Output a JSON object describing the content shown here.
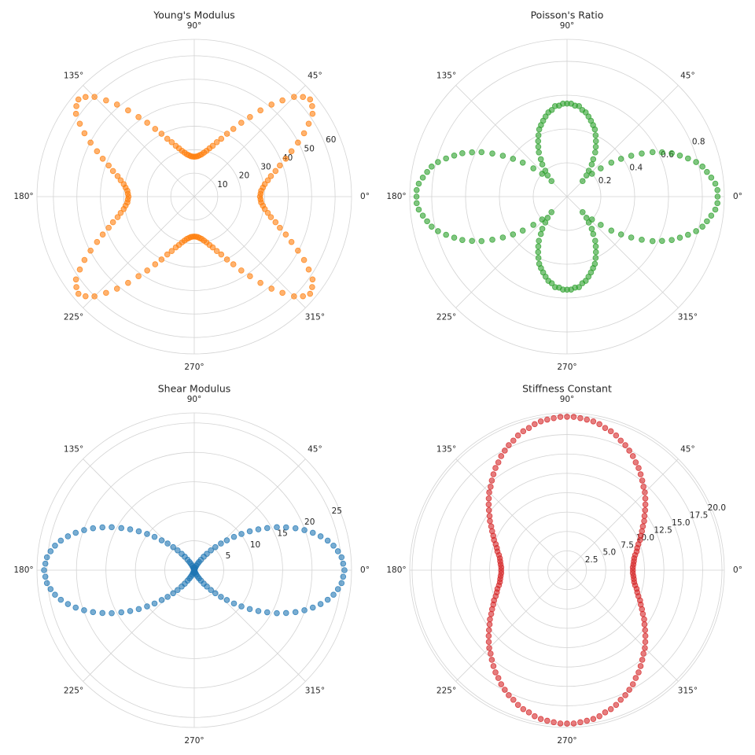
{
  "chart_data": [
    {
      "type": "polar_scatter",
      "title": "Young's Modulus",
      "color": "#ff7f0e",
      "grid": true,
      "ylim": [
        0,
        67
      ],
      "yticks": [
        10,
        20,
        30,
        40,
        50,
        60
      ],
      "xticks": [
        {
          "value": 0,
          "label": "0°"
        },
        {
          "value": 45,
          "label": "45°"
        },
        {
          "value": 90,
          "label": "90°"
        },
        {
          "value": 135,
          "label": "135°"
        },
        {
          "value": 180,
          "label": "180°"
        },
        {
          "value": 225,
          "label": "225°"
        },
        {
          "value": 270,
          "label": "270°"
        },
        {
          "value": 315,
          "label": "315°"
        }
      ],
      "theta": [
        0,
        2.5,
        5,
        7.5,
        10,
        12.5,
        15,
        17.5,
        20,
        22.5,
        25,
        27.5,
        30,
        32.5,
        35,
        37.5,
        40,
        42.5,
        45,
        47.5,
        50,
        52.5,
        55,
        57.5,
        60,
        62.5,
        65,
        67.5,
        70,
        72.5,
        75,
        77.5,
        80,
        82.5,
        85,
        87.5,
        90,
        92.5,
        95,
        97.5,
        100,
        102.5,
        105,
        107.5,
        110,
        112.5,
        115,
        117.5,
        120,
        122.5,
        125,
        127.5,
        130,
        132.5,
        135,
        137.5,
        140,
        142.5,
        145,
        147.5,
        150,
        152.5,
        155,
        157.5,
        160,
        162.5,
        165,
        167.5,
        170,
        172.5,
        175,
        177.5,
        180,
        182.5,
        185,
        187.5,
        190,
        192.5,
        195,
        197.5,
        200,
        202.5,
        205,
        207.5,
        210,
        212.5,
        215,
        217.5,
        220,
        222.5,
        225,
        227.5,
        230,
        232.5,
        235,
        237.5,
        240,
        242.5,
        245,
        247.5,
        250,
        252.5,
        255,
        257.5,
        260,
        262.5,
        265,
        267.5,
        270,
        272.5,
        275,
        277.5,
        280,
        282.5,
        285,
        287.5,
        290,
        292.5,
        295,
        297.5,
        300,
        302.5,
        305,
        307.5,
        310,
        312.5,
        315,
        317.5,
        320,
        322.5,
        325,
        327.5,
        330,
        332.5,
        335,
        337.5,
        340,
        342.5,
        345,
        347.5,
        350,
        352.5,
        355,
        357.5
      ],
      "values": [
        28.0,
        28.3,
        28.6,
        29.5,
        30.5,
        32.1,
        33.8,
        36.3,
        38.8,
        42.2,
        45.7,
        49.8,
        54.0,
        57.8,
        61.5,
        63.3,
        64.4,
        62.8,
        60.1,
        55.6,
        51.2,
        46.3,
        41.4,
        37.3,
        33.3,
        30.2,
        27.2,
        25.1,
        23.0,
        21.6,
        20.2,
        19.2,
        18.3,
        17.8,
        17.3,
        17.1,
        17.0,
        17.1,
        17.3,
        17.8,
        18.3,
        19.2,
        20.2,
        21.6,
        23.0,
        25.1,
        27.2,
        30.2,
        33.3,
        37.3,
        41.4,
        46.3,
        51.2,
        55.6,
        60.1,
        62.8,
        64.4,
        63.3,
        61.5,
        57.8,
        54.0,
        49.8,
        45.7,
        42.2,
        38.8,
        36.3,
        33.8,
        32.1,
        30.5,
        29.5,
        28.6,
        28.3,
        28.0,
        28.3,
        28.6,
        29.5,
        30.5,
        32.1,
        33.8,
        36.3,
        38.8,
        42.2,
        45.7,
        49.8,
        54.0,
        57.8,
        61.5,
        63.3,
        64.4,
        62.8,
        60.1,
        55.6,
        51.2,
        46.3,
        41.4,
        37.3,
        33.3,
        30.2,
        27.2,
        25.1,
        23.0,
        21.6,
        20.2,
        19.2,
        18.3,
        17.8,
        17.3,
        17.1,
        17.0,
        17.1,
        17.3,
        17.8,
        18.3,
        19.2,
        20.2,
        21.6,
        23.0,
        25.1,
        27.2,
        30.2,
        33.3,
        37.3,
        41.4,
        46.3,
        51.2,
        55.6,
        60.1,
        62.8,
        64.4,
        63.3,
        61.5,
        57.8,
        54.0,
        49.8,
        45.7,
        42.2,
        38.8,
        36.3,
        33.8,
        32.1,
        30.5,
        29.5,
        28.6,
        28.3
      ]
    },
    {
      "type": "polar_scatter",
      "title": "Poisson's Ratio",
      "color": "#2ca02c",
      "grid": true,
      "ylim": [
        0,
        0.93
      ],
      "yticks": [
        0.2,
        0.4,
        0.6,
        0.8
      ],
      "xticks": [
        {
          "value": 0,
          "label": "0°"
        },
        {
          "value": 45,
          "label": "45°"
        },
        {
          "value": 90,
          "label": "90°"
        },
        {
          "value": 135,
          "label": "135°"
        },
        {
          "value": 180,
          "label": "180°"
        },
        {
          "value": 225,
          "label": "225°"
        },
        {
          "value": 270,
          "label": "270°"
        },
        {
          "value": 315,
          "label": "315°"
        }
      ],
      "theta": [
        0,
        2.5,
        5,
        7.5,
        10,
        12.5,
        15,
        17.5,
        20,
        22.5,
        25,
        27.5,
        30,
        32.5,
        35,
        37.5,
        40,
        42.5,
        45,
        47.5,
        50,
        52.5,
        55,
        57.5,
        60,
        62.5,
        65,
        67.5,
        70,
        72.5,
        75,
        77.5,
        80,
        82.5,
        85,
        87.5,
        90,
        92.5,
        95,
        97.5,
        100,
        102.5,
        105,
        107.5,
        110,
        112.5,
        115,
        117.5,
        120,
        122.5,
        125,
        127.5,
        130,
        132.5,
        135,
        137.5,
        140,
        142.5,
        145,
        147.5,
        150,
        152.5,
        155,
        157.5,
        160,
        162.5,
        165,
        167.5,
        170,
        172.5,
        175,
        177.5,
        180,
        182.5,
        185,
        187.5,
        190,
        192.5,
        195,
        197.5,
        200,
        202.5,
        205,
        207.5,
        210,
        212.5,
        215,
        217.5,
        220,
        222.5,
        225,
        227.5,
        230,
        232.5,
        235,
        237.5,
        240,
        242.5,
        245,
        247.5,
        250,
        252.5,
        255,
        257.5,
        260,
        262.5,
        265,
        267.5,
        270,
        272.5,
        275,
        277.5,
        280,
        282.5,
        285,
        287.5,
        290,
        292.5,
        295,
        297.5,
        300,
        302.5,
        305,
        307.5,
        310,
        312.5,
        315,
        317.5,
        320,
        322.5,
        325,
        327.5,
        330,
        332.5,
        335,
        337.5,
        340,
        342.5,
        345,
        347.5,
        350,
        352.5,
        355,
        357.5
      ],
      "values": [
        0.89,
        0.89,
        0.88,
        0.86,
        0.84,
        0.82,
        0.79,
        0.75,
        0.71,
        0.67,
        0.62,
        0.57,
        0.51,
        0.45,
        0.39,
        0.33,
        0.26,
        0.2,
        0.13,
        0.17,
        0.2,
        0.24,
        0.27,
        0.31,
        0.34,
        0.37,
        0.4,
        0.43,
        0.45,
        0.47,
        0.49,
        0.51,
        0.52,
        0.54,
        0.54,
        0.55,
        0.55,
        0.55,
        0.54,
        0.54,
        0.52,
        0.51,
        0.49,
        0.47,
        0.45,
        0.43,
        0.4,
        0.37,
        0.34,
        0.31,
        0.27,
        0.24,
        0.2,
        0.17,
        0.13,
        0.2,
        0.26,
        0.33,
        0.39,
        0.45,
        0.51,
        0.57,
        0.62,
        0.67,
        0.71,
        0.75,
        0.79,
        0.82,
        0.84,
        0.86,
        0.88,
        0.89,
        0.89,
        0.89,
        0.88,
        0.86,
        0.84,
        0.82,
        0.79,
        0.75,
        0.71,
        0.67,
        0.62,
        0.57,
        0.51,
        0.45,
        0.39,
        0.33,
        0.26,
        0.2,
        0.13,
        0.17,
        0.2,
        0.24,
        0.27,
        0.31,
        0.34,
        0.37,
        0.4,
        0.43,
        0.45,
        0.47,
        0.49,
        0.51,
        0.52,
        0.54,
        0.54,
        0.55,
        0.55,
        0.55,
        0.54,
        0.54,
        0.52,
        0.51,
        0.49,
        0.47,
        0.45,
        0.43,
        0.4,
        0.37,
        0.34,
        0.31,
        0.27,
        0.24,
        0.2,
        0.17,
        0.13,
        0.2,
        0.26,
        0.33,
        0.39,
        0.45,
        0.51,
        0.57,
        0.62,
        0.67,
        0.71,
        0.75,
        0.79,
        0.82,
        0.84,
        0.86,
        0.88,
        0.89
      ]
    },
    {
      "type": "polar_scatter",
      "title": "Shear Modulus",
      "color": "#1f77b4",
      "grid": true,
      "ylim": [
        0,
        26.7
      ],
      "yticks": [
        5,
        10,
        15,
        20,
        25
      ],
      "xticks": [
        {
          "value": 0,
          "label": "0°"
        },
        {
          "value": 45,
          "label": "45°"
        },
        {
          "value": 90,
          "label": "90°"
        },
        {
          "value": 135,
          "label": "135°"
        },
        {
          "value": 180,
          "label": "180°"
        },
        {
          "value": 225,
          "label": "225°"
        },
        {
          "value": 270,
          "label": "270°"
        },
        {
          "value": 315,
          "label": "315°"
        }
      ],
      "theta": [
        0,
        2.5,
        5,
        7.5,
        10,
        12.5,
        15,
        17.5,
        20,
        22.5,
        25,
        27.5,
        30,
        32.5,
        35,
        37.5,
        40,
        42.5,
        45,
        47.5,
        50,
        52.5,
        55,
        57.5,
        60,
        62.5,
        65,
        67.5,
        70,
        72.5,
        75,
        77.5,
        80,
        82.5,
        85,
        87.5,
        90,
        92.5,
        95,
        97.5,
        100,
        102.5,
        105,
        107.5,
        110,
        112.5,
        115,
        117.5,
        120,
        122.5,
        125,
        127.5,
        130,
        132.5,
        135,
        137.5,
        140,
        142.5,
        145,
        147.5,
        150,
        152.5,
        155,
        157.5,
        160,
        162.5,
        165,
        167.5,
        170,
        172.5,
        175,
        177.5,
        180,
        182.5,
        185,
        187.5,
        190,
        192.5,
        195,
        197.5,
        200,
        202.5,
        205,
        207.5,
        210,
        212.5,
        215,
        217.5,
        220,
        222.5,
        225,
        227.5,
        230,
        232.5,
        235,
        237.5,
        240,
        242.5,
        245,
        247.5,
        250,
        252.5,
        255,
        257.5,
        260,
        262.5,
        265,
        267.5,
        270,
        272.5,
        275,
        277.5,
        280,
        282.5,
        285,
        287.5,
        290,
        292.5,
        295,
        297.5,
        300,
        302.5,
        305,
        307.5,
        310,
        312.5,
        315,
        317.5,
        320,
        322.5,
        325,
        327.5,
        330,
        332.5,
        335,
        337.5,
        340,
        342.5,
        345,
        347.5,
        350,
        352.5,
        355,
        357.5
      ],
      "values": [
        25.5,
        25.3,
        25.1,
        24.6,
        24.0,
        23.2,
        22.2,
        21.1,
        19.9,
        18.6,
        17.2,
        15.8,
        14.3,
        12.9,
        11.5,
        10.1,
        8.8,
        7.5,
        6.4,
        5.3,
        4.4,
        3.5,
        2.8,
        2.1,
        1.6,
        1.2,
        0.8,
        0.5,
        0.3,
        0.2,
        0.1,
        0.1,
        0,
        0,
        0,
        0,
        0,
        0,
        0,
        0,
        0,
        0.1,
        0.1,
        0.2,
        0.3,
        0.5,
        0.8,
        1.2,
        1.6,
        2.1,
        2.8,
        3.5,
        4.4,
        5.3,
        6.4,
        7.5,
        8.8,
        10.1,
        11.5,
        12.9,
        14.3,
        15.8,
        17.2,
        18.6,
        19.9,
        21.1,
        22.2,
        23.2,
        24.0,
        24.6,
        25.1,
        25.3,
        25.5,
        25.3,
        25.1,
        24.6,
        24.0,
        23.2,
        22.2,
        21.1,
        19.9,
        18.6,
        17.2,
        15.8,
        14.3,
        12.9,
        11.5,
        10.1,
        8.8,
        7.5,
        6.4,
        5.3,
        4.4,
        3.5,
        2.8,
        2.1,
        1.6,
        1.2,
        0.8,
        0.5,
        0.3,
        0.2,
        0.1,
        0.1,
        0,
        0,
        0,
        0,
        0,
        0,
        0,
        0,
        0,
        0.1,
        0.1,
        0.2,
        0.3,
        0.5,
        0.8,
        1.2,
        1.6,
        2.1,
        2.8,
        3.5,
        4.4,
        5.3,
        6.4,
        7.5,
        8.8,
        10.1,
        11.5,
        12.9,
        14.3,
        15.8,
        17.2,
        18.6,
        19.9,
        21.1,
        22.2,
        23.2,
        24.0,
        24.6,
        25.1,
        25.3
      ]
    },
    {
      "type": "polar_scatter",
      "title": "Stiffness Constant",
      "color": "#d62728",
      "grid": true,
      "ylim": [
        0,
        20.3
      ],
      "yticks": [
        2.5,
        {
          "value": 5,
          "label": "5.0"
        },
        7.5,
        {
          "value": 10,
          "label": "10.0"
        },
        12.5,
        {
          "value": 15,
          "label": "15.0"
        },
        17.5,
        {
          "value": 20,
          "label": "20.0"
        }
      ],
      "xticks": [
        {
          "value": 0,
          "label": "0°"
        },
        {
          "value": 45,
          "label": "45°"
        },
        {
          "value": 90,
          "label": "90°"
        },
        {
          "value": 135,
          "label": "135°"
        },
        {
          "value": 180,
          "label": "180°"
        },
        {
          "value": 225,
          "label": "225°"
        },
        {
          "value": 270,
          "label": "270°"
        },
        {
          "value": 315,
          "label": "315°"
        }
      ],
      "theta": [
        0,
        2.5,
        5,
        7.5,
        10,
        12.5,
        15,
        17.5,
        20,
        22.5,
        25,
        27.5,
        30,
        32.5,
        35,
        37.5,
        40,
        42.5,
        45,
        47.5,
        50,
        52.5,
        55,
        57.5,
        60,
        62.5,
        65,
        67.5,
        70,
        72.5,
        75,
        77.5,
        80,
        82.5,
        85,
        87.5,
        90,
        92.5,
        95,
        97.5,
        100,
        102.5,
        105,
        107.5,
        110,
        112.5,
        115,
        117.5,
        120,
        122.5,
        125,
        127.5,
        130,
        132.5,
        135,
        137.5,
        140,
        142.5,
        145,
        147.5,
        150,
        152.5,
        155,
        157.5,
        160,
        162.5,
        165,
        167.5,
        170,
        172.5,
        175,
        177.5,
        180,
        182.5,
        185,
        187.5,
        190,
        192.5,
        195,
        197.5,
        200,
        202.5,
        205,
        207.5,
        210,
        212.5,
        215,
        217.5,
        220,
        222.5,
        225,
        227.5,
        230,
        232.5,
        235,
        237.5,
        240,
        242.5,
        245,
        247.5,
        250,
        252.5,
        255,
        257.5,
        260,
        262.5,
        265,
        267.5,
        270,
        272.5,
        275,
        277.5,
        280,
        282.5,
        285,
        287.5,
        290,
        292.5,
        295,
        297.5,
        300,
        302.5,
        305,
        307.5,
        310,
        312.5,
        315,
        317.5,
        320,
        322.5,
        325,
        327.5,
        330,
        332.5,
        335,
        337.5,
        340,
        342.5,
        345,
        347.5,
        350,
        352.5,
        355,
        357.5
      ],
      "values": [
        8.5,
        8.5,
        8.6,
        8.7,
        8.8,
        9.0,
        9.3,
        9.5,
        9.8,
        10.2,
        10.5,
        10.9,
        11.3,
        11.8,
        12.2,
        12.7,
        13.2,
        13.7,
        14.2,
        14.6,
        15.1,
        15.6,
        16.1,
        16.5,
        17.0,
        17.4,
        17.8,
        18.1,
        18.5,
        18.8,
        19.0,
        19.3,
        19.5,
        19.6,
        19.7,
        19.8,
        19.8,
        19.8,
        19.7,
        19.6,
        19.5,
        19.3,
        19.0,
        18.8,
        18.5,
        18.1,
        17.8,
        17.4,
        17.0,
        16.5,
        16.1,
        15.6,
        15.1,
        14.6,
        14.2,
        13.7,
        13.2,
        12.7,
        12.2,
        11.8,
        11.3,
        10.9,
        10.5,
        10.2,
        9.8,
        9.5,
        9.3,
        9.0,
        8.8,
        8.7,
        8.6,
        8.5,
        8.5,
        8.5,
        8.6,
        8.7,
        8.8,
        9.0,
        9.3,
        9.5,
        9.8,
        10.2,
        10.5,
        10.9,
        11.3,
        11.8,
        12.2,
        12.7,
        13.2,
        13.7,
        14.2,
        14.6,
        15.1,
        15.6,
        16.1,
        16.5,
        17.0,
        17.4,
        17.8,
        18.1,
        18.5,
        18.8,
        19.0,
        19.3,
        19.5,
        19.6,
        19.7,
        19.8,
        19.8,
        19.8,
        19.7,
        19.6,
        19.5,
        19.3,
        19.0,
        18.8,
        18.5,
        18.1,
        17.8,
        17.4,
        17.0,
        16.5,
        16.1,
        15.6,
        15.1,
        14.6,
        14.2,
        13.7,
        13.2,
        12.7,
        12.2,
        11.8,
        11.3,
        10.9,
        10.5,
        10.2,
        9.8,
        9.5,
        9.3,
        9.0,
        8.8,
        8.7,
        8.6,
        8.5
      ]
    }
  ]
}
